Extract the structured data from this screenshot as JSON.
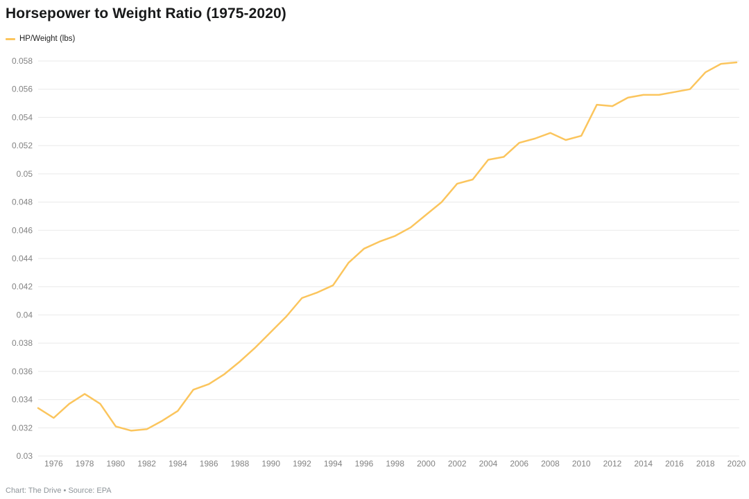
{
  "header": {
    "title": "Horsepower to Weight Ratio (1975-2020)"
  },
  "legend": {
    "label": "HP/Weight (lbs)"
  },
  "footer": {
    "attribution": "Chart: The Drive • Source: EPA"
  },
  "colors": {
    "line": "#fbc55d",
    "grid": "#e9e9e9",
    "tick_text": "#828282",
    "title_text": "#18191a",
    "footer_text": "#8d9499"
  },
  "chart_data": {
    "type": "line",
    "title": "Horsepower to Weight Ratio (1975-2020)",
    "xlabel": "",
    "ylabel": "",
    "ylim": [
      0.03,
      0.058
    ],
    "ytick_step": 0.002,
    "grid": "horizontal",
    "legend_position": "top-left",
    "xticks": [
      1976,
      1978,
      1980,
      1982,
      1984,
      1986,
      1988,
      1990,
      1992,
      1994,
      1996,
      1998,
      2000,
      2002,
      2004,
      2006,
      2008,
      2010,
      2012,
      2014,
      2016,
      2018,
      2020
    ],
    "series": [
      {
        "name": "HP/Weight (lbs)",
        "x": [
          1975,
          1976,
          1977,
          1978,
          1979,
          1980,
          1981,
          1982,
          1983,
          1984,
          1985,
          1986,
          1987,
          1988,
          1989,
          1990,
          1991,
          1992,
          1993,
          1994,
          1995,
          1996,
          1997,
          1998,
          1999,
          2000,
          2001,
          2002,
          2003,
          2004,
          2005,
          2006,
          2007,
          2008,
          2009,
          2010,
          2011,
          2012,
          2013,
          2014,
          2015,
          2016,
          2017,
          2018,
          2019,
          2020
        ],
        "values": [
          0.0334,
          0.0327,
          0.0337,
          0.0344,
          0.0337,
          0.0321,
          0.0318,
          0.0319,
          0.0325,
          0.0332,
          0.0347,
          0.0351,
          0.0358,
          0.0367,
          0.0377,
          0.0388,
          0.0399,
          0.0412,
          0.0416,
          0.0421,
          0.0437,
          0.0447,
          0.0452,
          0.0456,
          0.0462,
          0.0471,
          0.048,
          0.0493,
          0.0496,
          0.051,
          0.0512,
          0.0522,
          0.0525,
          0.0529,
          0.0524,
          0.0527,
          0.0549,
          0.0548,
          0.0554,
          0.0556,
          0.0556,
          0.0558,
          0.056,
          0.0572,
          0.0578,
          0.0579
        ]
      }
    ]
  }
}
